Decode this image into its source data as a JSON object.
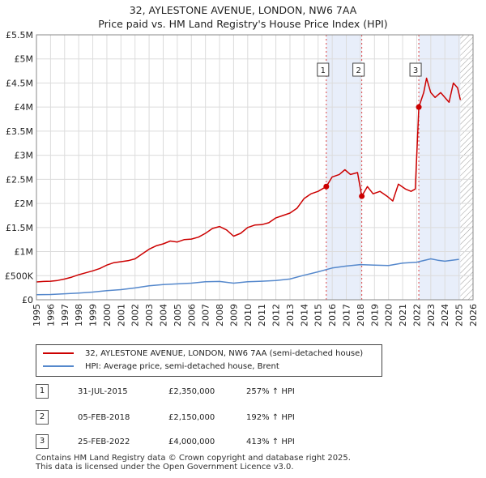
{
  "title": {
    "line1": "32, AYLESTONE AVENUE, LONDON, NW6 7AA",
    "line2": "Price paid vs. HM Land Registry's House Price Index (HPI)"
  },
  "colors": {
    "property_line": "#cc0000",
    "hpi_line": "#5588cc",
    "shade": "#e8eefa",
    "marker_line": "#dd4444"
  },
  "chart_data": {
    "type": "line",
    "ylim": [
      0,
      5500000
    ],
    "xlim": [
      1995,
      2026
    ],
    "y_ticks": [
      {
        "value": 0,
        "label": "£0"
      },
      {
        "value": 500000,
        "label": "£500K"
      },
      {
        "value": 1000000,
        "label": "£1M"
      },
      {
        "value": 1500000,
        "label": "£1.5M"
      },
      {
        "value": 2000000,
        "label": "£2M"
      },
      {
        "value": 2500000,
        "label": "£2.5M"
      },
      {
        "value": 3000000,
        "label": "£3M"
      },
      {
        "value": 3500000,
        "label": "£3.5M"
      },
      {
        "value": 4000000,
        "label": "£4M"
      },
      {
        "value": 4500000,
        "label": "£4.5M"
      },
      {
        "value": 5000000,
        "label": "£5M"
      },
      {
        "value": 5500000,
        "label": "£5.5M"
      }
    ],
    "x_ticks": [
      "1995",
      "1996",
      "1997",
      "1998",
      "1999",
      "2000",
      "2001",
      "2002",
      "2003",
      "2004",
      "2005",
      "2006",
      "2007",
      "2008",
      "2009",
      "2010",
      "2011",
      "2012",
      "2013",
      "2014",
      "2015",
      "2016",
      "2017",
      "2018",
      "2019",
      "2020",
      "2021",
      "2022",
      "2023",
      "2024",
      "2025",
      "2026"
    ],
    "series": [
      {
        "name": "32, AYLESTONE AVENUE, LONDON, NW6 7AA (semi-detached house)",
        "color": "#cc0000",
        "points": [
          [
            1995.0,
            370000
          ],
          [
            1995.5,
            380000
          ],
          [
            1996.0,
            385000
          ],
          [
            1996.5,
            400000
          ],
          [
            1997.0,
            430000
          ],
          [
            1997.5,
            470000
          ],
          [
            1998.0,
            520000
          ],
          [
            1998.5,
            560000
          ],
          [
            1999.0,
            600000
          ],
          [
            1999.5,
            650000
          ],
          [
            2000.0,
            720000
          ],
          [
            2000.5,
            770000
          ],
          [
            2001.0,
            790000
          ],
          [
            2001.5,
            810000
          ],
          [
            2002.0,
            850000
          ],
          [
            2002.5,
            950000
          ],
          [
            2003.0,
            1050000
          ],
          [
            2003.5,
            1120000
          ],
          [
            2004.0,
            1160000
          ],
          [
            2004.5,
            1220000
          ],
          [
            2005.0,
            1200000
          ],
          [
            2005.5,
            1250000
          ],
          [
            2006.0,
            1260000
          ],
          [
            2006.5,
            1300000
          ],
          [
            2007.0,
            1380000
          ],
          [
            2007.5,
            1480000
          ],
          [
            2008.0,
            1520000
          ],
          [
            2008.5,
            1450000
          ],
          [
            2009.0,
            1320000
          ],
          [
            2009.5,
            1380000
          ],
          [
            2010.0,
            1500000
          ],
          [
            2010.5,
            1550000
          ],
          [
            2011.0,
            1560000
          ],
          [
            2011.5,
            1600000
          ],
          [
            2012.0,
            1700000
          ],
          [
            2012.5,
            1750000
          ],
          [
            2013.0,
            1800000
          ],
          [
            2013.5,
            1900000
          ],
          [
            2014.0,
            2100000
          ],
          [
            2014.5,
            2200000
          ],
          [
            2015.0,
            2250000
          ],
          [
            2015.58,
            2350000
          ],
          [
            2016.0,
            2550000
          ],
          [
            2016.5,
            2600000
          ],
          [
            2016.9,
            2700000
          ],
          [
            2017.3,
            2600000
          ],
          [
            2017.8,
            2640000
          ],
          [
            2018.1,
            2150000
          ],
          [
            2018.5,
            2350000
          ],
          [
            2018.9,
            2200000
          ],
          [
            2019.4,
            2250000
          ],
          [
            2019.9,
            2150000
          ],
          [
            2020.3,
            2050000
          ],
          [
            2020.7,
            2400000
          ],
          [
            2021.2,
            2300000
          ],
          [
            2021.6,
            2250000
          ],
          [
            2021.9,
            2300000
          ],
          [
            2022.15,
            4000000
          ],
          [
            2022.5,
            4300000
          ],
          [
            2022.7,
            4600000
          ],
          [
            2023.0,
            4300000
          ],
          [
            2023.3,
            4200000
          ],
          [
            2023.7,
            4300000
          ],
          [
            2024.0,
            4200000
          ],
          [
            2024.3,
            4100000
          ],
          [
            2024.6,
            4500000
          ],
          [
            2024.9,
            4400000
          ],
          [
            2025.1,
            4150000
          ]
        ]
      },
      {
        "name": "HPI: Average price, semi-detached house, Brent",
        "color": "#5588cc",
        "points": [
          [
            1995.0,
            105000
          ],
          [
            1996.0,
            110000
          ],
          [
            1997.0,
            125000
          ],
          [
            1998.0,
            140000
          ],
          [
            1999.0,
            160000
          ],
          [
            2000.0,
            190000
          ],
          [
            2001.0,
            210000
          ],
          [
            2002.0,
            245000
          ],
          [
            2003.0,
            290000
          ],
          [
            2004.0,
            315000
          ],
          [
            2005.0,
            330000
          ],
          [
            2006.0,
            345000
          ],
          [
            2007.0,
            375000
          ],
          [
            2008.0,
            380000
          ],
          [
            2009.0,
            345000
          ],
          [
            2010.0,
            375000
          ],
          [
            2011.0,
            385000
          ],
          [
            2012.0,
            400000
          ],
          [
            2013.0,
            430000
          ],
          [
            2014.0,
            510000
          ],
          [
            2015.0,
            580000
          ],
          [
            2016.0,
            660000
          ],
          [
            2017.0,
            700000
          ],
          [
            2018.0,
            730000
          ],
          [
            2019.0,
            720000
          ],
          [
            2020.0,
            710000
          ],
          [
            2021.0,
            760000
          ],
          [
            2022.0,
            780000
          ],
          [
            2023.0,
            850000
          ],
          [
            2023.5,
            820000
          ],
          [
            2024.0,
            800000
          ],
          [
            2024.5,
            820000
          ],
          [
            2025.0,
            840000
          ]
        ]
      }
    ],
    "sales": [
      {
        "label": "1",
        "x": 2015.58,
        "value": 2350000
      },
      {
        "label": "2",
        "x": 2018.1,
        "value": 2150000
      },
      {
        "label": "3",
        "x": 2022.15,
        "value": 4000000
      }
    ],
    "shaded": [
      [
        2015.58,
        2018.1
      ],
      [
        2022.15,
        2025.1
      ]
    ],
    "hatch_from": 2025.1
  },
  "legend": {
    "property": "32, AYLESTONE AVENUE, LONDON, NW6 7AA (semi-detached house)",
    "hpi": "HPI: Average price, semi-detached house, Brent"
  },
  "transactions": [
    {
      "num": "1",
      "date": "31-JUL-2015",
      "price": "£2,350,000",
      "hpi": "257% ↑ HPI"
    },
    {
      "num": "2",
      "date": "05-FEB-2018",
      "price": "£2,150,000",
      "hpi": "192% ↑ HPI"
    },
    {
      "num": "3",
      "date": "25-FEB-2022",
      "price": "£4,000,000",
      "hpi": "413% ↑ HPI"
    }
  ],
  "footer": {
    "line1": "Contains HM Land Registry data © Crown copyright and database right 2025.",
    "line2": "This data is licensed under the Open Government Licence v3.0."
  }
}
